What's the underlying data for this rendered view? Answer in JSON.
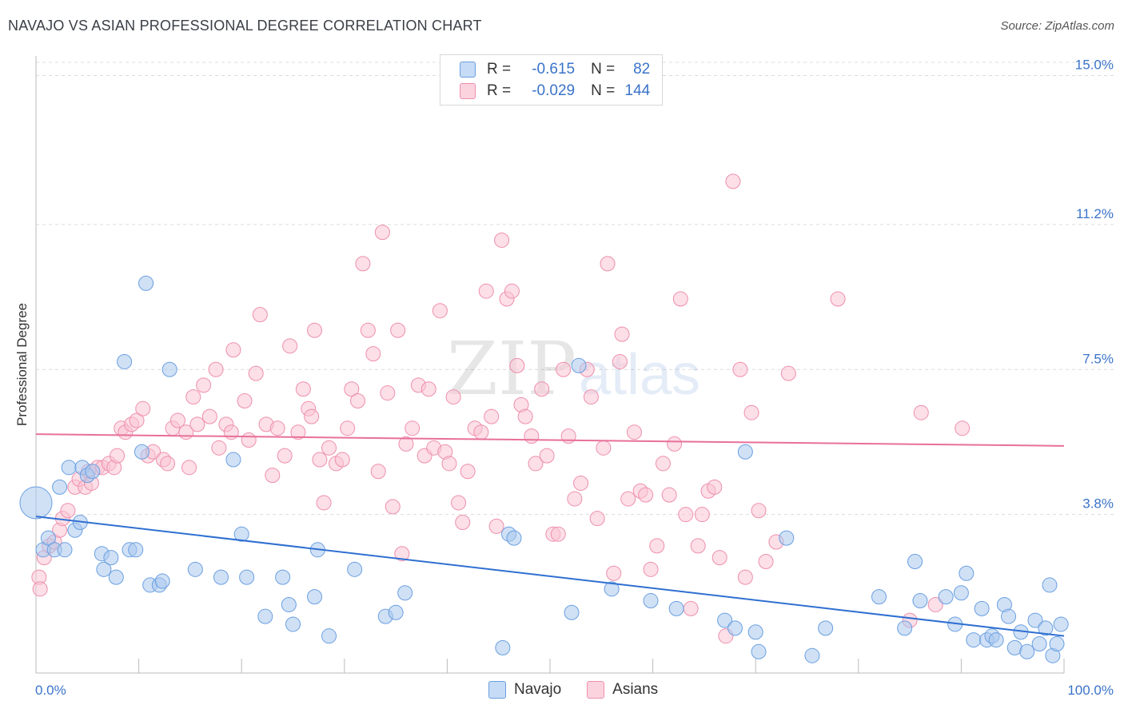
{
  "header": {
    "title": "NAVAJO VS ASIAN PROFESSIONAL DEGREE CORRELATION CHART",
    "source": "Source: ZipAtlas.com"
  },
  "watermark": {
    "zip": "ZIP",
    "atlas": "atlas"
  },
  "legend": {
    "rows": [
      {
        "r_label": "R =",
        "r_value": "-0.615",
        "n_label": "N =",
        "n_value": "82",
        "color": "#a9c8ef"
      },
      {
        "r_label": "R =",
        "r_value": "-0.029",
        "n_label": "N =",
        "n_value": "144",
        "color": "#f6b8ca"
      }
    ]
  },
  "bottom_legend": [
    {
      "label": "Navajo",
      "color": "#a9c8ef"
    },
    {
      "label": "Asians",
      "color": "#f6b8ca"
    }
  ],
  "chart_data": {
    "type": "scatter",
    "xlabel": "",
    "ylabel": "Professional Degree",
    "xlim": [
      0,
      100
    ],
    "ylim": [
      0,
      15.5
    ],
    "x_tick_labels": [
      "0.0%",
      "100.0%"
    ],
    "y_ticks": [
      3.8,
      7.5,
      11.2,
      15.0
    ],
    "y_tick_labels": [
      "3.8%",
      "7.5%",
      "11.2%",
      "15.0%"
    ],
    "grid": true,
    "colors": {
      "navajo_fill": "#a9c8ef",
      "navajo_stroke": "#6a9fe0",
      "navajo_line": "#2f6fd1",
      "asian_fill": "#f9c4d3",
      "asian_stroke": "#ee8fad",
      "asian_line": "#e8709a"
    },
    "series": [
      {
        "name": "Navajo",
        "trend": {
          "x": [
            0,
            100
          ],
          "y": [
            3.75,
            0.7
          ]
        },
        "points": [
          [
            0.0,
            4.1
          ],
          [
            0.7,
            2.9
          ],
          [
            1.2,
            3.2
          ],
          [
            1.8,
            2.9
          ],
          [
            2.3,
            4.5
          ],
          [
            2.8,
            2.9
          ],
          [
            3.2,
            5.0
          ],
          [
            3.8,
            3.4
          ],
          [
            4.3,
            3.6
          ],
          [
            4.5,
            5.0
          ],
          [
            5.0,
            4.8
          ],
          [
            5.5,
            4.9
          ],
          [
            6.4,
            2.8
          ],
          [
            6.6,
            2.4
          ],
          [
            7.3,
            2.7
          ],
          [
            7.8,
            2.2
          ],
          [
            8.6,
            7.7
          ],
          [
            9.1,
            2.9
          ],
          [
            9.7,
            2.9
          ],
          [
            10.3,
            5.4
          ],
          [
            10.7,
            9.7
          ],
          [
            11.1,
            2.0
          ],
          [
            12.0,
            2.0
          ],
          [
            12.3,
            2.1
          ],
          [
            13.0,
            7.5
          ],
          [
            15.5,
            2.4
          ],
          [
            18.0,
            2.2
          ],
          [
            19.2,
            5.2
          ],
          [
            20.0,
            3.3
          ],
          [
            20.5,
            2.2
          ],
          [
            22.3,
            1.2
          ],
          [
            24.0,
            2.2
          ],
          [
            24.6,
            1.5
          ],
          [
            25.0,
            1.0
          ],
          [
            27.1,
            1.7
          ],
          [
            27.4,
            2.9
          ],
          [
            28.5,
            0.7
          ],
          [
            31.0,
            2.4
          ],
          [
            34.0,
            1.2
          ],
          [
            35.0,
            1.3
          ],
          [
            35.9,
            1.8
          ],
          [
            45.4,
            0.4
          ],
          [
            46.0,
            3.3
          ],
          [
            46.5,
            3.2
          ],
          [
            52.1,
            1.3
          ],
          [
            52.8,
            7.6
          ],
          [
            56.0,
            1.9
          ],
          [
            59.8,
            1.6
          ],
          [
            62.3,
            1.4
          ],
          [
            67.0,
            1.1
          ],
          [
            68.0,
            0.9
          ],
          [
            69.0,
            5.4
          ],
          [
            70.0,
            0.8
          ],
          [
            70.3,
            0.3
          ],
          [
            73.0,
            3.2
          ],
          [
            75.5,
            0.2
          ],
          [
            76.8,
            0.9
          ],
          [
            82.0,
            1.7
          ],
          [
            84.5,
            0.9
          ],
          [
            85.5,
            2.6
          ],
          [
            86.0,
            1.6
          ],
          [
            88.5,
            1.7
          ],
          [
            89.4,
            1.0
          ],
          [
            90.0,
            1.8
          ],
          [
            90.5,
            2.3
          ],
          [
            91.2,
            0.6
          ],
          [
            92.0,
            1.4
          ],
          [
            92.5,
            0.6
          ],
          [
            93.0,
            0.7
          ],
          [
            93.4,
            0.6
          ],
          [
            94.2,
            1.5
          ],
          [
            94.6,
            1.2
          ],
          [
            95.2,
            0.4
          ],
          [
            95.8,
            0.8
          ],
          [
            96.4,
            0.3
          ],
          [
            97.2,
            1.1
          ],
          [
            97.6,
            0.5
          ],
          [
            98.2,
            0.9
          ],
          [
            98.6,
            2.0
          ],
          [
            98.9,
            0.2
          ],
          [
            99.3,
            0.5
          ],
          [
            99.7,
            1.0
          ]
        ]
      },
      {
        "name": "Asians",
        "trend": {
          "x": [
            0,
            100
          ],
          "y": [
            5.85,
            5.55
          ]
        },
        "points": [
          [
            0.3,
            2.2
          ],
          [
            0.4,
            1.9
          ],
          [
            0.8,
            2.7
          ],
          [
            1.3,
            3.0
          ],
          [
            1.8,
            3.1
          ],
          [
            2.3,
            3.4
          ],
          [
            2.6,
            3.7
          ],
          [
            3.1,
            3.9
          ],
          [
            3.8,
            4.5
          ],
          [
            4.2,
            4.7
          ],
          [
            4.8,
            4.5
          ],
          [
            5.1,
            4.9
          ],
          [
            5.4,
            4.6
          ],
          [
            6.0,
            5.0
          ],
          [
            6.5,
            5.0
          ],
          [
            7.1,
            5.1
          ],
          [
            7.6,
            5.0
          ],
          [
            7.9,
            5.3
          ],
          [
            8.3,
            6.0
          ],
          [
            8.7,
            5.9
          ],
          [
            9.3,
            6.1
          ],
          [
            9.8,
            6.2
          ],
          [
            10.4,
            6.5
          ],
          [
            10.9,
            5.3
          ],
          [
            11.4,
            5.4
          ],
          [
            12.4,
            5.2
          ],
          [
            12.8,
            5.1
          ],
          [
            13.3,
            6.0
          ],
          [
            13.8,
            6.2
          ],
          [
            14.6,
            5.9
          ],
          [
            14.9,
            5.0
          ],
          [
            15.3,
            6.8
          ],
          [
            15.7,
            6.1
          ],
          [
            16.3,
            7.1
          ],
          [
            16.9,
            6.3
          ],
          [
            17.5,
            7.5
          ],
          [
            17.8,
            5.5
          ],
          [
            18.5,
            6.1
          ],
          [
            19.0,
            5.9
          ],
          [
            19.2,
            8.0
          ],
          [
            20.3,
            6.7
          ],
          [
            20.7,
            5.7
          ],
          [
            21.4,
            7.4
          ],
          [
            21.8,
            8.9
          ],
          [
            22.4,
            6.1
          ],
          [
            23.0,
            4.8
          ],
          [
            23.5,
            6.0
          ],
          [
            24.2,
            5.3
          ],
          [
            24.7,
            8.1
          ],
          [
            25.5,
            5.9
          ],
          [
            26.0,
            7.0
          ],
          [
            26.5,
            6.5
          ],
          [
            26.8,
            6.3
          ],
          [
            27.1,
            8.5
          ],
          [
            27.6,
            5.2
          ],
          [
            28.0,
            4.1
          ],
          [
            28.5,
            5.5
          ],
          [
            29.2,
            5.1
          ],
          [
            29.8,
            5.2
          ],
          [
            30.3,
            6.0
          ],
          [
            30.7,
            7.0
          ],
          [
            31.3,
            6.7
          ],
          [
            31.8,
            10.2
          ],
          [
            32.3,
            8.5
          ],
          [
            32.8,
            7.9
          ],
          [
            33.3,
            4.9
          ],
          [
            33.7,
            11.0
          ],
          [
            34.2,
            6.9
          ],
          [
            34.7,
            4.0
          ],
          [
            35.2,
            8.5
          ],
          [
            35.6,
            2.8
          ],
          [
            36.0,
            5.6
          ],
          [
            36.6,
            6.0
          ],
          [
            37.2,
            7.1
          ],
          [
            37.8,
            5.3
          ],
          [
            38.2,
            7.0
          ],
          [
            38.7,
            5.5
          ],
          [
            39.3,
            9.0
          ],
          [
            39.8,
            5.4
          ],
          [
            40.2,
            5.1
          ],
          [
            40.6,
            6.8
          ],
          [
            41.1,
            4.1
          ],
          [
            41.5,
            3.6
          ],
          [
            42.0,
            4.9
          ],
          [
            42.7,
            6.0
          ],
          [
            43.3,
            5.9
          ],
          [
            43.8,
            9.5
          ],
          [
            44.3,
            6.3
          ],
          [
            44.8,
            3.5
          ],
          [
            45.3,
            10.8
          ],
          [
            45.8,
            9.3
          ],
          [
            46.3,
            9.5
          ],
          [
            46.8,
            7.6
          ],
          [
            47.2,
            6.6
          ],
          [
            47.6,
            6.3
          ],
          [
            48.2,
            5.8
          ],
          [
            48.6,
            5.1
          ],
          [
            49.2,
            7.0
          ],
          [
            49.7,
            5.3
          ],
          [
            50.3,
            3.3
          ],
          [
            50.8,
            3.3
          ],
          [
            51.3,
            7.5
          ],
          [
            51.8,
            5.8
          ],
          [
            52.4,
            4.2
          ],
          [
            53.0,
            4.6
          ],
          [
            53.6,
            7.5
          ],
          [
            54.0,
            6.8
          ],
          [
            54.6,
            3.7
          ],
          [
            55.2,
            5.5
          ],
          [
            55.6,
            10.2
          ],
          [
            56.2,
            2.3
          ],
          [
            56.8,
            7.7
          ],
          [
            57.0,
            8.4
          ],
          [
            57.6,
            4.2
          ],
          [
            58.2,
            5.9
          ],
          [
            58.8,
            4.4
          ],
          [
            59.3,
            4.3
          ],
          [
            59.8,
            2.4
          ],
          [
            60.4,
            3.0
          ],
          [
            61.0,
            5.1
          ],
          [
            61.6,
            4.3
          ],
          [
            62.1,
            5.6
          ],
          [
            62.7,
            9.3
          ],
          [
            63.2,
            3.8
          ],
          [
            63.7,
            1.4
          ],
          [
            64.4,
            3.0
          ],
          [
            64.8,
            3.8
          ],
          [
            65.4,
            4.4
          ],
          [
            66.0,
            4.5
          ],
          [
            66.5,
            2.7
          ],
          [
            67.1,
            0.7
          ],
          [
            67.8,
            12.3
          ],
          [
            68.5,
            7.5
          ],
          [
            69.0,
            2.2
          ],
          [
            69.6,
            6.4
          ],
          [
            70.3,
            3.9
          ],
          [
            71.0,
            2.6
          ],
          [
            72.0,
            3.1
          ],
          [
            73.2,
            7.4
          ],
          [
            78.0,
            9.3
          ],
          [
            85.0,
            1.1
          ],
          [
            86.1,
            6.4
          ],
          [
            87.5,
            1.5
          ],
          [
            90.1,
            6.0
          ]
        ]
      }
    ]
  }
}
